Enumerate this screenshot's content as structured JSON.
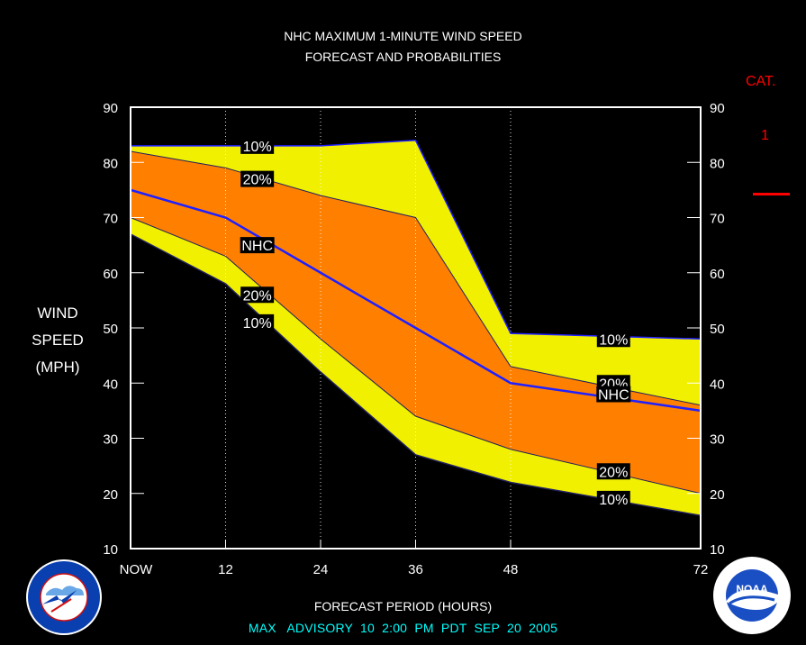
{
  "title": {
    "line1": "NHC MAXIMUM 1-MINUTE WIND SPEED",
    "line2": "FORECAST AND PROBABILITIES"
  },
  "category_legend": {
    "heading": "CAT.",
    "value": "1",
    "line_color": "#ff0000"
  },
  "y_axis_label": [
    "WIND",
    "SPEED",
    "(MPH)"
  ],
  "x_axis_title": "FORECAST PERIOD (HOURS)",
  "advisory_text": "MAX   ADVISORY  10  2:00  PM  PDT  SEP  20  2005",
  "logos": {
    "left": "national-weather-service-logo",
    "right": "noaa-logo",
    "right_text": "NOAA"
  },
  "colors": {
    "band_10": "#f0f000",
    "band_20": "#ff8000",
    "nhc_line": "#2020ff",
    "axis": "#ffffff",
    "advisory": "#00ffff",
    "category": "#ff0000"
  },
  "chart_data": {
    "type": "area",
    "x": [
      0,
      12,
      24,
      36,
      48,
      72
    ],
    "x_tick_labels": [
      "NOW",
      "12",
      "24",
      "36",
      "48",
      "72"
    ],
    "xlim": [
      0,
      72
    ],
    "ylim": [
      10,
      90
    ],
    "y_ticks": [
      10,
      20,
      30,
      40,
      50,
      60,
      70,
      80,
      90
    ],
    "grid_vertical_dotted": [
      12,
      24,
      36,
      48
    ],
    "series": [
      {
        "name": "10%",
        "role": "upper",
        "values": [
          83,
          83,
          83,
          84,
          49,
          48
        ]
      },
      {
        "name": "20%",
        "role": "upper",
        "values": [
          82,
          79,
          74,
          70,
          43,
          36
        ]
      },
      {
        "name": "NHC",
        "role": "forecast",
        "values": [
          75,
          70,
          60,
          50,
          40,
          35
        ]
      },
      {
        "name": "20%",
        "role": "lower",
        "values": [
          70,
          63,
          48,
          34,
          28,
          20
        ]
      },
      {
        "name": "10%",
        "role": "lower",
        "values": [
          67,
          58,
          42,
          27,
          22,
          16
        ]
      }
    ],
    "labels": [
      {
        "text": "10%",
        "x": 16,
        "y": 83
      },
      {
        "text": "20%",
        "x": 16,
        "y": 77
      },
      {
        "text": "NHC",
        "x": 16,
        "y": 65
      },
      {
        "text": "20%",
        "x": 16,
        "y": 56
      },
      {
        "text": "10%",
        "x": 16,
        "y": 51
      },
      {
        "text": "10%",
        "x": 61,
        "y": 48
      },
      {
        "text": "20%",
        "x": 61,
        "y": 40
      },
      {
        "text": "NHC",
        "x": 61,
        "y": 38
      },
      {
        "text": "20%",
        "x": 61,
        "y": 24
      },
      {
        "text": "10%",
        "x": 61,
        "y": 19
      }
    ]
  }
}
